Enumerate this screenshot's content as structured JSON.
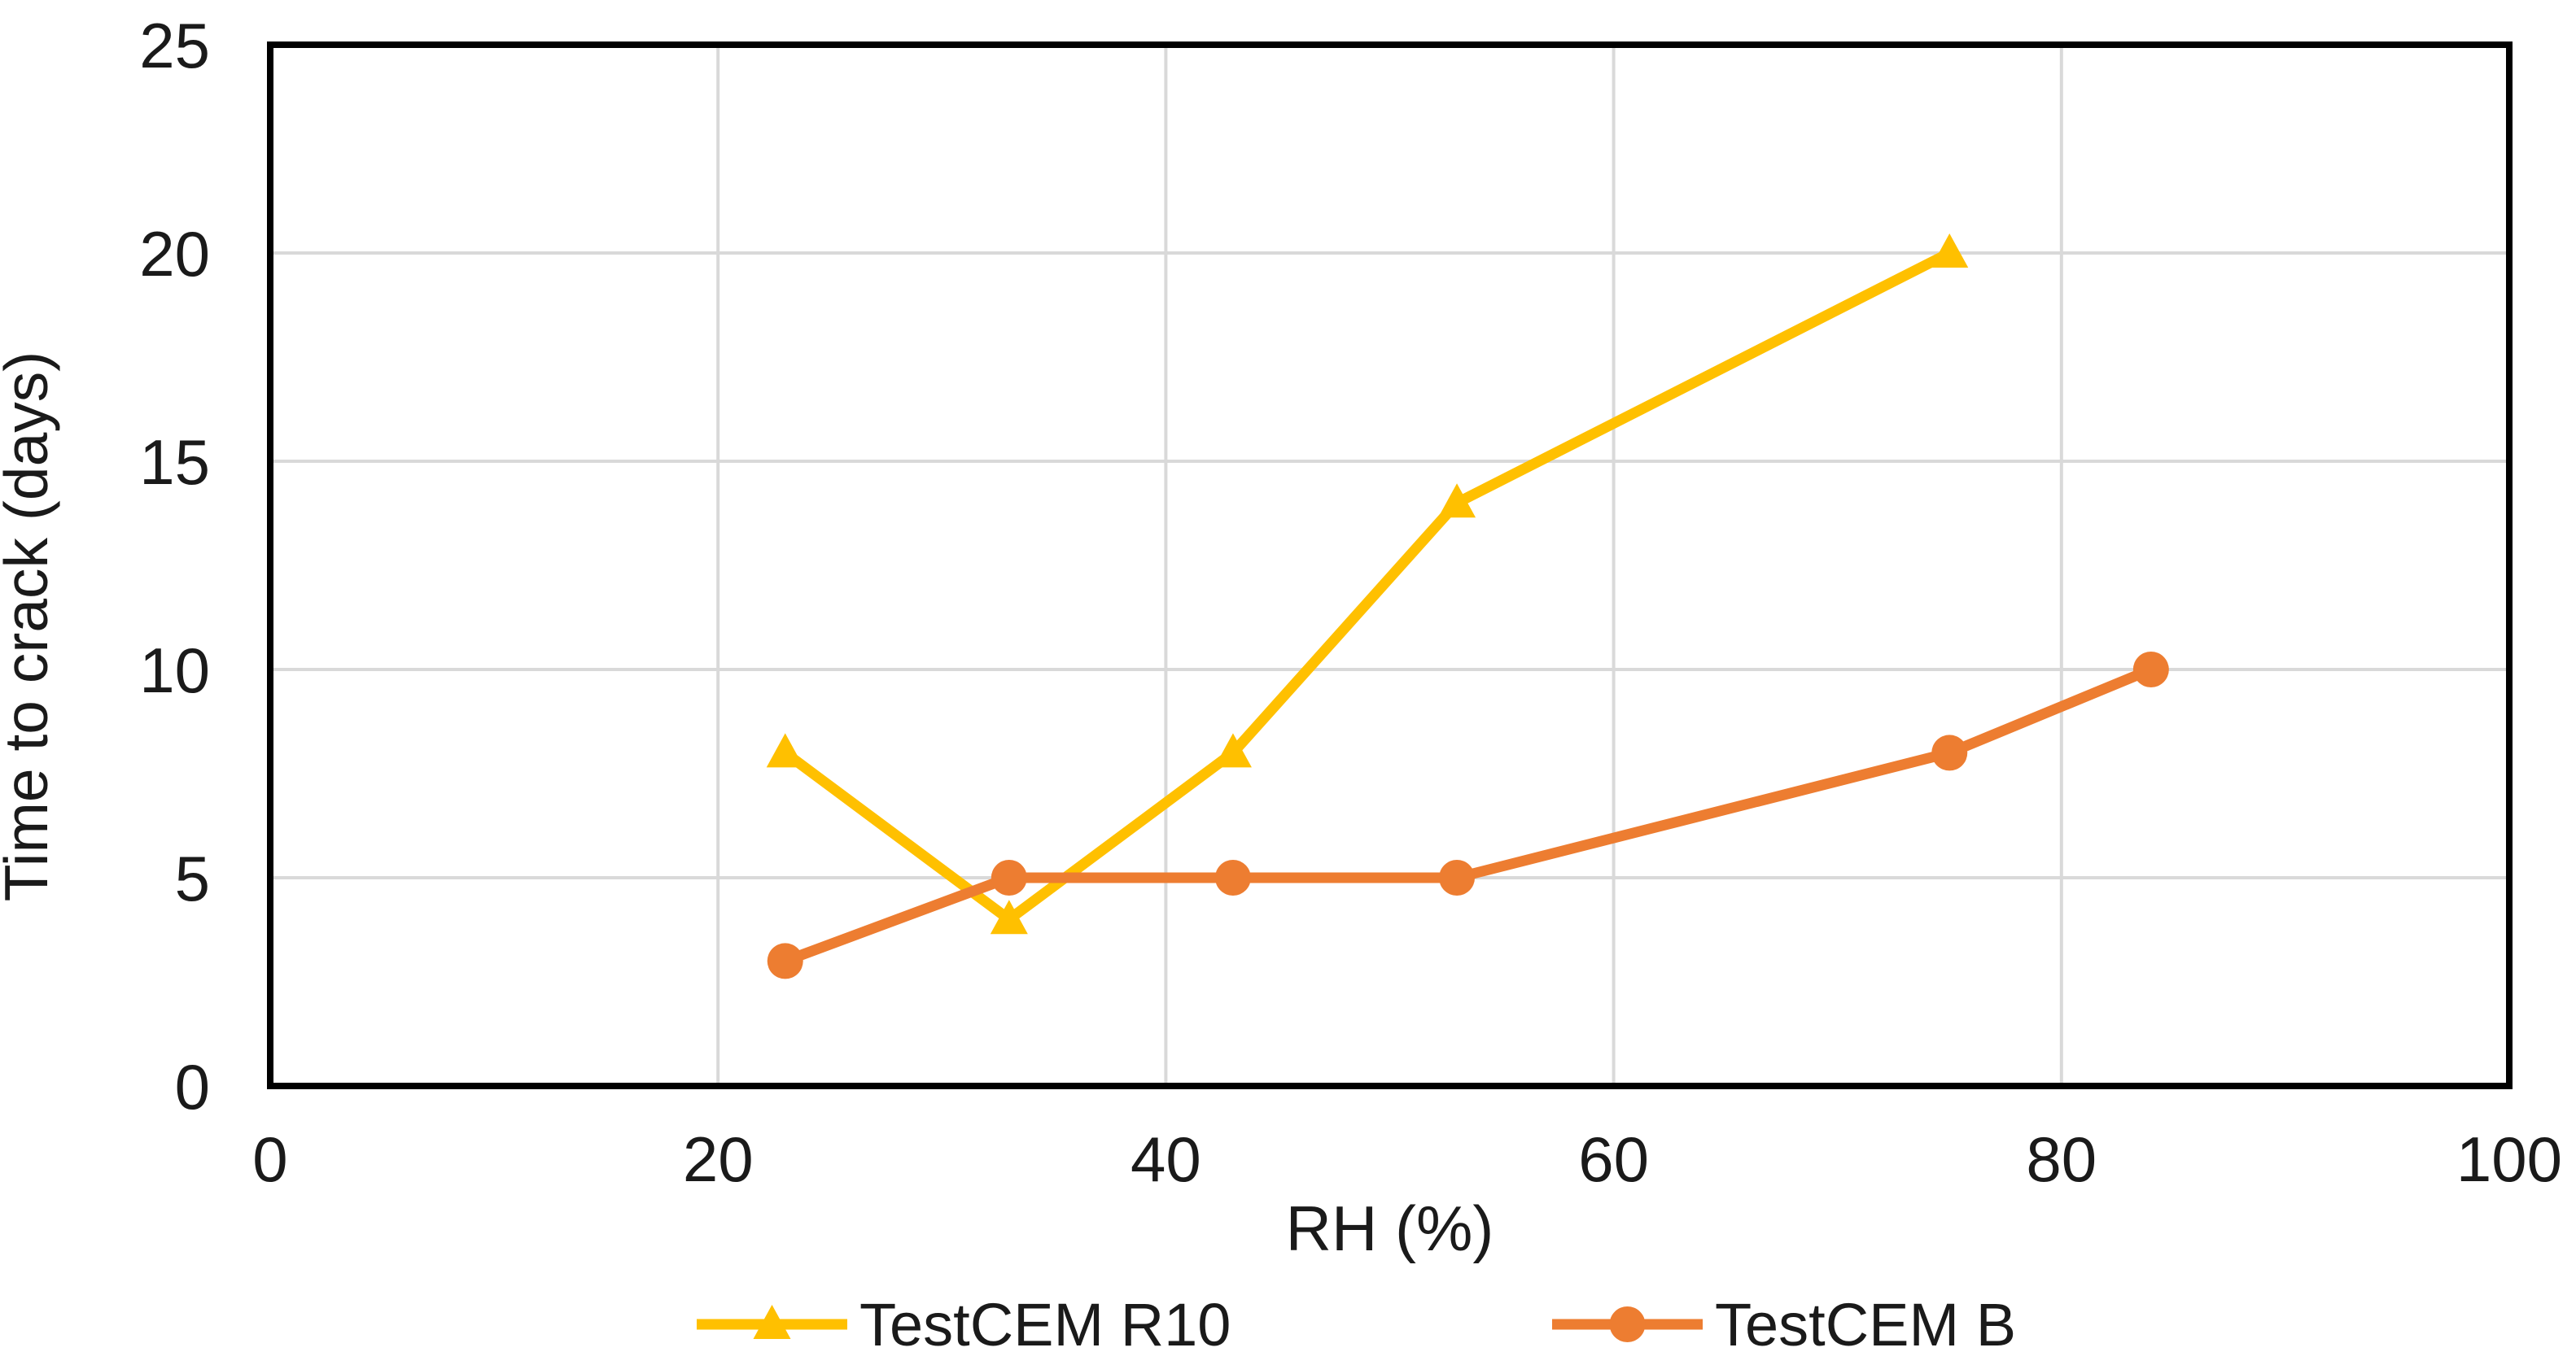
{
  "chart_data": {
    "type": "line",
    "title": "",
    "xlabel": "RH (%)",
    "ylabel": "Time to crack (days)",
    "xlim": [
      0,
      100
    ],
    "ylim": [
      0,
      25
    ],
    "xticks": [
      0,
      20,
      40,
      60,
      80,
      100
    ],
    "yticks": [
      0,
      5,
      10,
      15,
      20,
      25
    ],
    "grid": true,
    "legend_position": "bottom-center",
    "series": [
      {
        "name": "TestCEM R10",
        "color": "#FFC000",
        "marker": "triangle",
        "points": [
          [
            23,
            8
          ],
          [
            33,
            4
          ],
          [
            43,
            8
          ],
          [
            53,
            14
          ],
          [
            75,
            20
          ]
        ]
      },
      {
        "name": "TestCEM B",
        "color": "#ED7D31",
        "marker": "circle",
        "points": [
          [
            23,
            3
          ],
          [
            33,
            5
          ],
          [
            43,
            5
          ],
          [
            53,
            5
          ],
          [
            75,
            8
          ],
          [
            84,
            10
          ]
        ]
      }
    ]
  },
  "styles": {
    "background": "#FFFFFF",
    "gridline_color": "#D9D9D9",
    "axis_color": "#000000",
    "text_color": "#1A1A1A"
  }
}
